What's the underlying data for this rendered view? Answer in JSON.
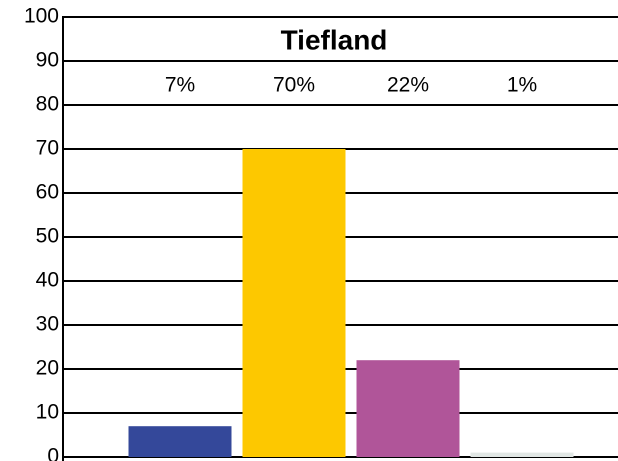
{
  "chart_data": {
    "type": "bar",
    "title": "Tiefland",
    "categories": [
      null,
      null,
      null,
      null
    ],
    "values": [
      7,
      70,
      22,
      1
    ],
    "value_labels": [
      "7%",
      "70%",
      "22%",
      "1%"
    ],
    "colors": [
      "#34489a",
      "#fdc800",
      "#b05599",
      "#e1e7e5"
    ],
    "ylim": [
      0,
      100
    ],
    "yticks": [
      0,
      10,
      20,
      30,
      40,
      50,
      60,
      70,
      80,
      90,
      100
    ],
    "grid": true
  }
}
